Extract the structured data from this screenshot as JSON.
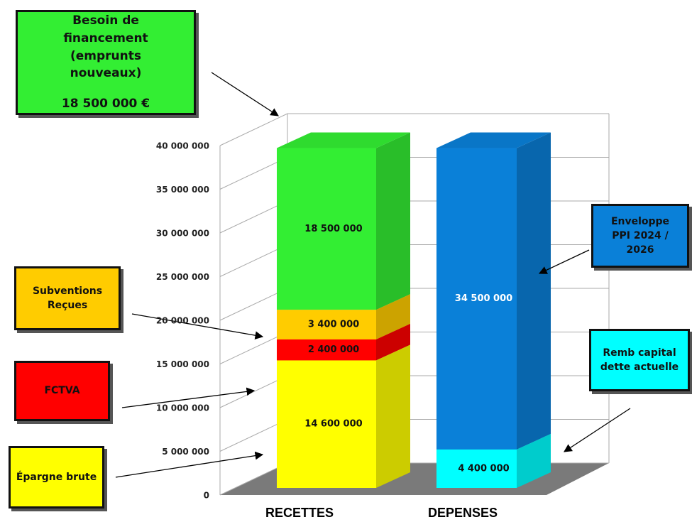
{
  "chart_data": {
    "type": "stacked_bar_3d",
    "categories": [
      "RECETTES",
      "DEPENSES"
    ],
    "series": [
      {
        "name": "Épargne brute",
        "color": "#ffff00",
        "values": [
          14600000,
          null
        ],
        "value_labels": [
          "14 600 000",
          null
        ]
      },
      {
        "name": "FCTVA",
        "color": "#ff0000",
        "values": [
          2400000,
          null
        ],
        "value_labels": [
          "2 400 000",
          null
        ]
      },
      {
        "name": "Subventions Reçues",
        "color": "#ffcc00",
        "values": [
          3400000,
          null
        ],
        "value_labels": [
          "3 400 000",
          null
        ]
      },
      {
        "name": "Besoin de financement (emprunts nouveaux)",
        "annotation": "18 500 000 €",
        "color": "#33ee33",
        "values": [
          18500000,
          null
        ],
        "value_labels": [
          "18 500 000",
          null
        ]
      },
      {
        "name": "Remb capital dette actuelle",
        "color": "#00ffff",
        "values": [
          null,
          4400000
        ],
        "value_labels": [
          null,
          "4 400 000"
        ]
      },
      {
        "name": "Enveloppe PPI 2024 / 2026",
        "color": "#0a80d8",
        "values": [
          null,
          34500000
        ],
        "value_labels": [
          null,
          "34 500 000"
        ]
      }
    ],
    "ylim": [
      0,
      40000000
    ],
    "yticks": [
      0,
      {
        "value": 5000000,
        "label": "5 000 000"
      },
      {
        "value": 10000000,
        "label": "10 000 000"
      },
      {
        "value": 15000000,
        "label": "15 000 000"
      },
      {
        "value": 20000000,
        "label": "20 000 000"
      },
      {
        "value": 25000000,
        "label": "25 000 000"
      },
      {
        "value": 30000000,
        "label": "30 000 000"
      },
      {
        "value": 35000000,
        "label": "35 000 000"
      },
      {
        "value": 40000000,
        "label": "40 000 000"
      }
    ],
    "grid": true
  }
}
